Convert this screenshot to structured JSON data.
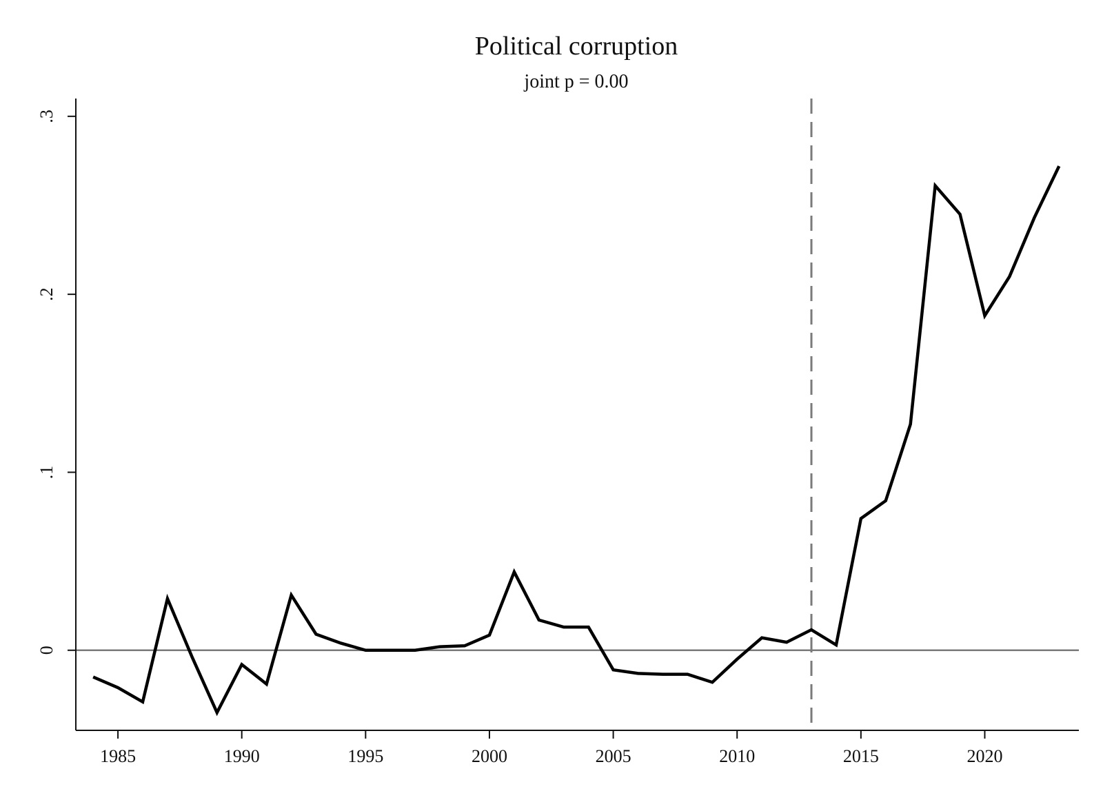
{
  "chart_data": {
    "type": "line",
    "title": "Political corruption",
    "subtitle": "joint p = 0.00",
    "xlabel": "",
    "ylabel": "",
    "xlim": [
      1983.3,
      2023.8
    ],
    "ylim": [
      -0.045,
      0.31
    ],
    "x_ticks": [
      1985,
      1990,
      1995,
      2000,
      2005,
      2010,
      2015,
      2020
    ],
    "x_tick_labels": [
      "1985",
      "1990",
      "1995",
      "2000",
      "2005",
      "2010",
      "2015",
      "2020"
    ],
    "y_ticks": [
      0,
      0.1,
      0.2,
      0.3
    ],
    "y_tick_labels": [
      "0",
      ".1",
      ".2",
      ".3"
    ],
    "reference_lines": {
      "horizontal_y": 0,
      "vertical_dashed_x": 2013
    },
    "grid": false,
    "legend": "none",
    "series": [
      {
        "color": "#000000",
        "x": [
          1984,
          1985,
          1986,
          1987,
          1988,
          1989,
          1990,
          1991,
          1992,
          1993,
          1994,
          1995,
          1996,
          1997,
          1998,
          1999,
          2000,
          2001,
          2002,
          2003,
          2004,
          2005,
          2006,
          2007,
          2008,
          2009,
          2010,
          2011,
          2012,
          2013,
          2014,
          2015,
          2016,
          2017,
          2018,
          2019,
          2020,
          2021,
          2022,
          2023
        ],
        "values": [
          -0.015,
          -0.021,
          -0.029,
          0.029,
          -0.004,
          -0.035,
          -0.008,
          -0.019,
          0.031,
          0.009,
          0.004,
          0.0,
          0.0,
          0.0,
          0.002,
          0.0025,
          0.0085,
          0.044,
          0.017,
          0.013,
          0.013,
          -0.011,
          -0.013,
          -0.0135,
          -0.0135,
          -0.018,
          -0.005,
          0.007,
          0.0045,
          0.0115,
          0.003,
          0.074,
          0.084,
          0.127,
          0.261,
          0.245,
          0.188,
          0.21,
          0.243,
          0.272
        ]
      }
    ]
  }
}
